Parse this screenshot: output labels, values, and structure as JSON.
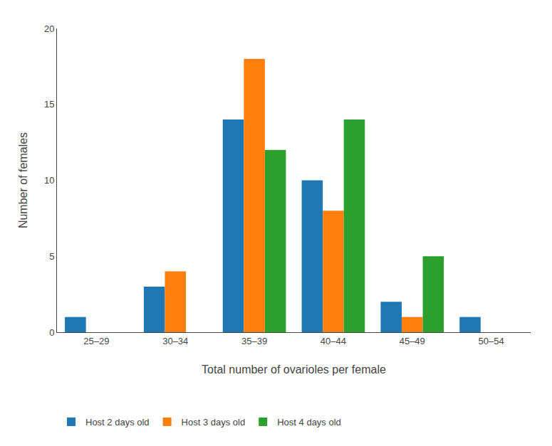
{
  "chart_data": {
    "type": "bar",
    "categories": [
      "25–29",
      "30–34",
      "35–39",
      "40–44",
      "45–49",
      "50–54"
    ],
    "series": [
      {
        "name": "Host 2 days old",
        "values": [
          1,
          3,
          14,
          10,
          2,
          1
        ]
      },
      {
        "name": "Host 3 days old",
        "values": [
          0,
          4,
          18,
          8,
          1,
          0
        ]
      },
      {
        "name": "Host 4 days old",
        "values": [
          0,
          0,
          12,
          14,
          5,
          0
        ]
      }
    ],
    "xlabel": "Total number of ovarioles per female",
    "ylabel": "Number of females",
    "ylim": [
      0,
      20
    ],
    "yticks": [
      0,
      5,
      10,
      15,
      20
    ],
    "grid": false,
    "legend": "bottom"
  }
}
